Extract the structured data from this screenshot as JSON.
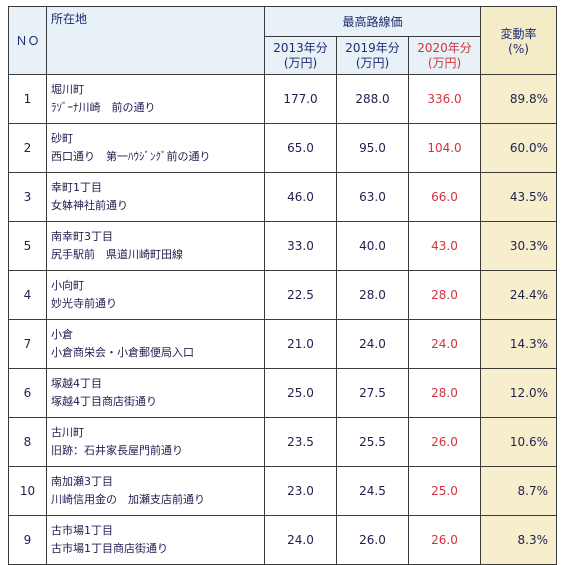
{
  "header": {
    "no": "ＮＯ",
    "location": "所在地",
    "price_group": "最高路線価",
    "col2013": "2013年分",
    "col2019": "2019年分",
    "col2020": "2020年分",
    "unit": "(万円)",
    "rate": "変動率",
    "rate_unit": "(%)"
  },
  "rows": [
    {
      "no": "1",
      "loc1": "堀川町",
      "loc2": "ﾗｿﾞｰﾅ川崎　前の通り",
      "v2013": "177.0",
      "v2019": "288.0",
      "v2020": "336.0",
      "rate": "89.8%"
    },
    {
      "no": "2",
      "loc1": "砂町",
      "loc2": "西口通り　第一ﾊｳｼﾞﾝｸﾞ前の通り",
      "v2013": "65.0",
      "v2019": "95.0",
      "v2020": "104.0",
      "rate": "60.0%"
    },
    {
      "no": "3",
      "loc1": "幸町1丁目",
      "loc2": "女躰神社前通り",
      "v2013": "46.0",
      "v2019": "63.0",
      "v2020": "66.0",
      "rate": "43.5%"
    },
    {
      "no": "5",
      "loc1": "南幸町3丁目",
      "loc2": "尻手駅前　県道川崎町田線",
      "v2013": "33.0",
      "v2019": "40.0",
      "v2020": "43.0",
      "rate": "30.3%"
    },
    {
      "no": "4",
      "loc1": "小向町",
      "loc2": "妙光寺前通り",
      "v2013": "22.5",
      "v2019": "28.0",
      "v2020": "28.0",
      "rate": "24.4%"
    },
    {
      "no": "7",
      "loc1": "小倉",
      "loc2": "小倉商栄会・小倉郵便局入口",
      "v2013": "21.0",
      "v2019": "24.0",
      "v2020": "24.0",
      "rate": "14.3%"
    },
    {
      "no": "6",
      "loc1": "塚越4丁目",
      "loc2": "塚越4丁目商店街通り",
      "v2013": "25.0",
      "v2019": "27.5",
      "v2020": "28.0",
      "rate": "12.0%"
    },
    {
      "no": "8",
      "loc1": "古川町",
      "loc2": "旧跡：石井家長屋門前通り",
      "v2013": "23.5",
      "v2019": "25.5",
      "v2020": "26.0",
      "rate": "10.6%"
    },
    {
      "no": "10",
      "loc1": "南加瀬3丁目",
      "loc2": "川崎信用金の　加瀬支店前通り",
      "v2013": "23.0",
      "v2019": "24.5",
      "v2020": "25.0",
      "rate": "8.7%"
    },
    {
      "no": "9",
      "loc1": "古市場1丁目",
      "loc2": "古市場1丁目商店街通り",
      "v2013": "24.0",
      "v2019": "26.0",
      "v2020": "26.0",
      "rate": "8.3%"
    }
  ]
}
